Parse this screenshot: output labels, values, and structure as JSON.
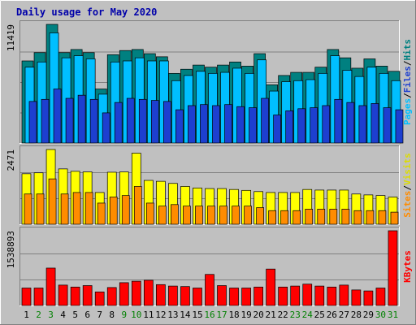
{
  "chart_data": {
    "type": "bar",
    "title": "Daily usage for May 2020",
    "categories": [
      "1",
      "2",
      "3",
      "4",
      "5",
      "6",
      "7",
      "8",
      "9",
      "10",
      "11",
      "12",
      "13",
      "14",
      "15",
      "16",
      "17",
      "18",
      "19",
      "20",
      "21",
      "22",
      "23",
      "24",
      "25",
      "26",
      "27",
      "28",
      "29",
      "30",
      "31"
    ],
    "weekend_days": [
      "2",
      "3",
      "9",
      "10",
      "16",
      "17",
      "23",
      "24",
      "30",
      "31"
    ],
    "panels": [
      {
        "id": "hits",
        "ymax": 11419,
        "ymax_label": "11419",
        "series": [
          {
            "name": "Pages",
            "color": "#1d3fd0",
            "values": [
              4000,
              4200,
              5200,
              4300,
              4600,
              4200,
              2900,
              3900,
              4300,
              4200,
              4100,
              4000,
              3200,
              3600,
              3700,
              3600,
              3700,
              3500,
              3400,
              4300,
              2700,
              3100,
              3300,
              3400,
              3600,
              4200,
              3900,
              3600,
              3800,
              3400,
              3200
            ]
          },
          {
            "name": "Files",
            "color": "#00bfff",
            "values": [
              7300,
              7800,
              10600,
              8200,
              8400,
              8100,
              4700,
              7800,
              7900,
              8200,
              7900,
              7900,
              6000,
              6500,
              6900,
              6700,
              6800,
              7200,
              6700,
              8000,
              5000,
              5900,
              6000,
              6100,
              6700,
              8400,
              7000,
              6400,
              7300,
              6700,
              6000
            ]
          },
          {
            "name": "Hits",
            "color": "#008080",
            "values": [
              7900,
              8700,
              11419,
              8700,
              9000,
              8700,
              5200,
              8500,
              8900,
              9000,
              8600,
              8300,
              6700,
              7100,
              7500,
              7300,
              7500,
              7800,
              7400,
              8600,
              5600,
              6500,
              6800,
              6800,
              7300,
              9000,
              8200,
              7200,
              8100,
              7400,
              6900
            ]
          }
        ]
      },
      {
        "id": "sites-visits",
        "ymax": 2471,
        "ymax_label": "2471",
        "series": [
          {
            "name": "Sites",
            "color": "#ff8c00",
            "values": [
              1000,
              1000,
              1500,
              1000,
              1050,
              1050,
              700,
              900,
              950,
              1250,
              700,
              600,
              650,
              600,
              600,
              600,
              600,
              600,
              600,
              550,
              450,
              450,
              450,
              500,
              500,
              500,
              500,
              450,
              450,
              450,
              400
            ]
          },
          {
            "name": "Visits",
            "color": "#ffff00",
            "values": [
              1670,
              1700,
              2471,
              1830,
              1750,
              1730,
              1050,
              1720,
              1730,
              2350,
              1450,
              1420,
              1350,
              1250,
              1200,
              1180,
              1180,
              1150,
              1120,
              1080,
              1050,
              1050,
              1050,
              1150,
              1130,
              1130,
              1130,
              1000,
              970,
              950,
              900
            ]
          }
        ]
      },
      {
        "id": "kbytes",
        "ymax": 1538893,
        "ymax_label": "1538893",
        "series": [
          {
            "name": "KBytes",
            "color": "#ff0000",
            "values": [
              360000,
              360000,
              770000,
              420000,
              380000,
              410000,
              280000,
              370000,
              470000,
              500000,
              520000,
              430000,
              400000,
              390000,
              360000,
              640000,
              410000,
              360000,
              360000,
              380000,
              750000,
              380000,
              400000,
              440000,
              400000,
              380000,
              420000,
              320000,
              300000,
              360000,
              1538893
            ]
          }
        ]
      }
    ],
    "side_labels": {
      "top": [
        {
          "text": "Pages",
          "color": "#00bfff"
        },
        {
          "text": "/",
          "color": "#000000"
        },
        {
          "text": "Files",
          "color": "#1d3fd0"
        },
        {
          "text": "/",
          "color": "#000000"
        },
        {
          "text": "Hits",
          "color": "#008080"
        }
      ],
      "middle": [
        {
          "text": "Sites",
          "color": "#ff8c00"
        },
        {
          "text": "/",
          "color": "#000000"
        },
        {
          "text": "Visits",
          "color": "#dcdc00"
        }
      ],
      "bottom": [
        {
          "text": "KBytes",
          "color": "#ff0000"
        }
      ]
    },
    "grid": true,
    "colors": {
      "background": "#c0c0c0",
      "title": "#0000aa",
      "weekday_label": "#000000",
      "weekend_label": "#008000"
    }
  }
}
